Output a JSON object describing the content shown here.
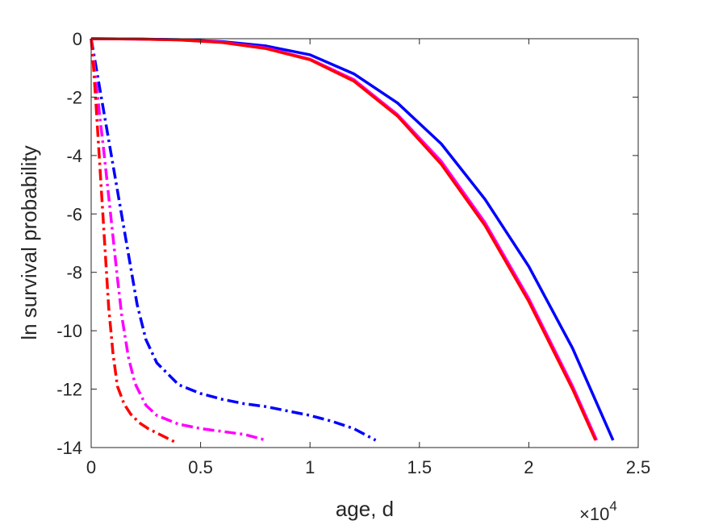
{
  "chart_data": {
    "type": "line",
    "title": "",
    "xlabel": "age, d",
    "ylabel": "ln survival probability",
    "x_exponent_label": "×10",
    "x_exponent_power": "4",
    "xlim": [
      0,
      25000
    ],
    "ylim": [
      -14,
      0
    ],
    "xticks": [
      0,
      5000,
      10000,
      15000,
      20000,
      25000
    ],
    "xtick_labels": [
      "0",
      "0.5",
      "1",
      "1.5",
      "2",
      "2.5"
    ],
    "yticks": [
      0,
      -2,
      -4,
      -6,
      -8,
      -10,
      -12,
      -14
    ],
    "ytick_labels": [
      "0",
      "-2",
      "-4",
      "-6",
      "-8",
      "-10",
      "-12",
      "-14"
    ],
    "grid": false,
    "box": true,
    "series": [
      {
        "color": "#0000ff",
        "style": "solid",
        "x": [
          0,
          2000,
          4000,
          6000,
          8000,
          10000,
          12000,
          14000,
          16000,
          18000,
          20000,
          22000,
          23850
        ],
        "y": [
          0,
          -0.01,
          -0.03,
          -0.1,
          -0.25,
          -0.55,
          -1.2,
          -2.2,
          -3.6,
          -5.5,
          -7.8,
          -10.6,
          -13.75
        ]
      },
      {
        "color": "#ff00ff",
        "style": "solid",
        "x": [
          0,
          2000,
          4000,
          6000,
          8000,
          10000,
          12000,
          14000,
          16000,
          18000,
          20000,
          22000,
          23100
        ],
        "y": [
          0,
          -0.01,
          -0.04,
          -0.12,
          -0.32,
          -0.7,
          -1.4,
          -2.6,
          -4.2,
          -6.3,
          -8.9,
          -11.9,
          -13.75
        ]
      },
      {
        "color": "#ff0000",
        "style": "solid",
        "x": [
          0,
          2000,
          4000,
          6000,
          8000,
          10000,
          12000,
          14000,
          16000,
          18000,
          20000,
          22000,
          23050
        ],
        "y": [
          0,
          -0.01,
          -0.04,
          -0.13,
          -0.34,
          -0.72,
          -1.45,
          -2.65,
          -4.3,
          -6.4,
          -9.0,
          -12.0,
          -13.75
        ]
      },
      {
        "color": "#0000ff",
        "style": "dashdot",
        "x": [
          0,
          300,
          600,
          900,
          1200,
          1500,
          1800,
          2100,
          2500,
          3000,
          4000,
          5000,
          6000,
          7000,
          8000,
          9000,
          10000,
          11000,
          12000,
          13000
        ],
        "y": [
          0,
          -1.3,
          -2.6,
          -3.9,
          -5.2,
          -6.5,
          -7.8,
          -9.1,
          -10.3,
          -11.1,
          -11.85,
          -12.15,
          -12.35,
          -12.5,
          -12.6,
          -12.75,
          -12.9,
          -13.1,
          -13.35,
          -13.75
        ]
      },
      {
        "color": "#ff00ff",
        "style": "dashdot",
        "x": [
          0,
          200,
          400,
          600,
          800,
          1000,
          1200,
          1400,
          1700,
          2000,
          2500,
          3000,
          4000,
          5000,
          6000,
          7000,
          8000
        ],
        "y": [
          0,
          -1.3,
          -2.7,
          -4.0,
          -5.4,
          -6.8,
          -8.2,
          -9.5,
          -10.9,
          -11.8,
          -12.55,
          -12.9,
          -13.2,
          -13.35,
          -13.45,
          -13.55,
          -13.75
        ]
      },
      {
        "color": "#ff0000",
        "style": "dashdot",
        "x": [
          0,
          100,
          200,
          300,
          400,
          500,
          600,
          700,
          800,
          1000,
          1200,
          1500,
          1800,
          2200,
          2600,
          3000,
          3400,
          3800
        ],
        "y": [
          0,
          -0.9,
          -2.0,
          -3.2,
          -4.4,
          -5.6,
          -6.8,
          -8.0,
          -9.2,
          -10.8,
          -11.9,
          -12.5,
          -12.85,
          -13.15,
          -13.35,
          -13.5,
          -13.65,
          -13.8
        ]
      }
    ]
  }
}
